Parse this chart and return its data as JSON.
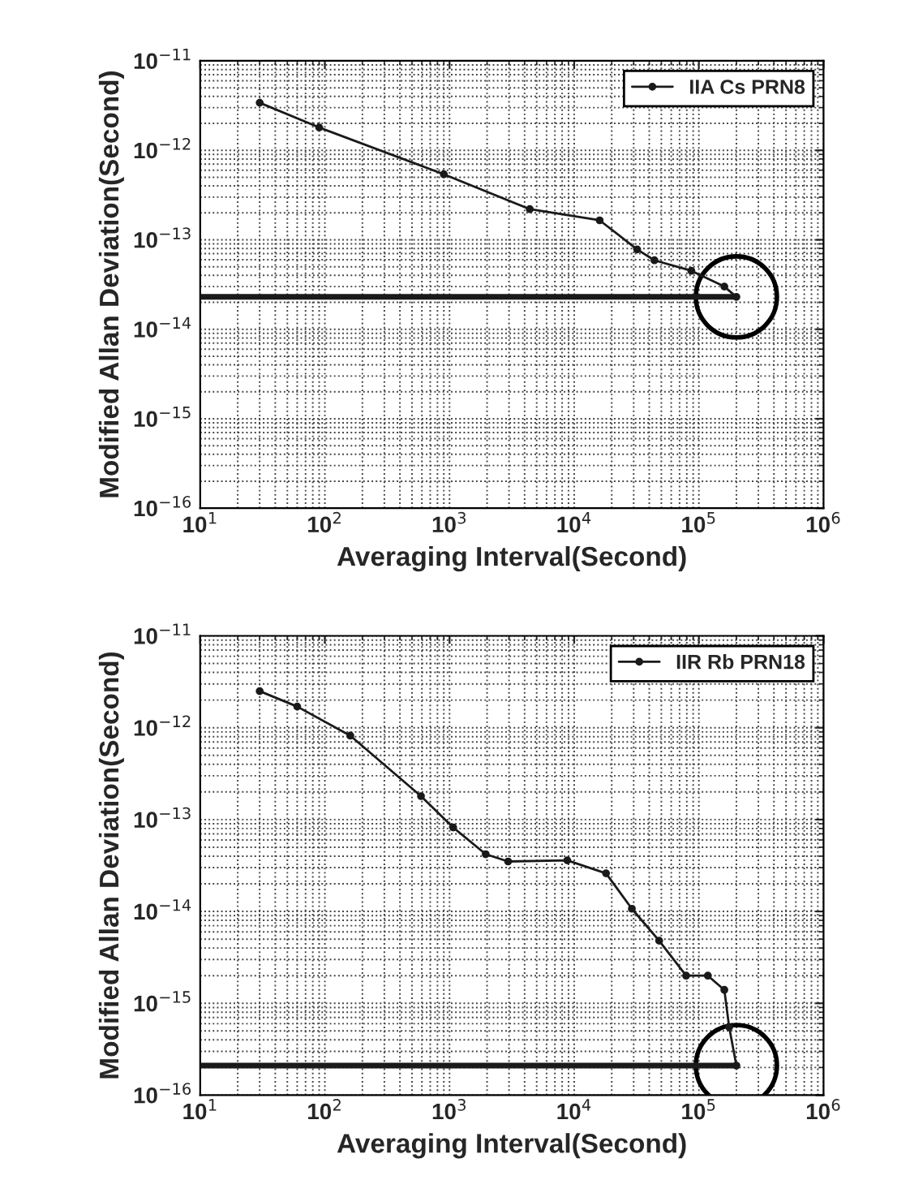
{
  "chart_data": [
    {
      "type": "line",
      "xlabel": "Averaging Interval(Second)",
      "ylabel": "Modified Allan Deviation(Second)",
      "log": "xy",
      "grid": true,
      "legend": "top right",
      "xlim": [
        10,
        1000000
      ],
      "ylim": [
        1e-16,
        1e-11
      ],
      "xticks": [
        {
          "value": 10,
          "label": "10$^{1}$"
        },
        {
          "value": 100,
          "label": "10$^{2}$"
        },
        {
          "value": 1000,
          "label": "10$^{3}$"
        },
        {
          "value": 10000,
          "label": "10$^{4}$"
        },
        {
          "value": 100000,
          "label": "10$^{5}$"
        },
        {
          "value": 1000000,
          "label": "10$^{6}$"
        }
      ],
      "yticks": [
        {
          "value": 1e-16,
          "label": "10$^{−16}$"
        },
        {
          "value": 1e-15,
          "label": "10$^{−15}$"
        },
        {
          "value": 1e-14,
          "label": "10$^{−14}$"
        },
        {
          "value": 1e-13,
          "label": "10$^{−13}$"
        },
        {
          "value": 1e-12,
          "label": "10$^{−12}$"
        },
        {
          "value": 1e-11,
          "label": "10$^{−11}$"
        }
      ],
      "series": [
        {
          "name": "IIA Cs PRN8",
          "color": "#1a1a1a",
          "marker": "circle",
          "x": [
            30,
            90,
            900,
            4400,
            16000,
            32000,
            44000,
            87000,
            160000,
            200000
          ],
          "values": [
            3.4e-12,
            1.8e-12,
            5.4e-13,
            2.2e-13,
            1.65e-13,
            7.8e-14,
            5.9e-14,
            4.5e-14,
            3e-14,
            2.3e-14
          ]
        },
        {
          "color": "#1a1a1a",
          "marker": "none",
          "x": [
            10,
            200000
          ],
          "values": [
            2.3e-14,
            2.3e-14
          ]
        }
      ]
    },
    {
      "type": "line",
      "xlabel": "Averaging Interval(Second)",
      "ylabel": "Modified Allan Deviation(Second)",
      "log": "xy",
      "grid": true,
      "legend": "top right",
      "xlim": [
        10,
        1000000
      ],
      "ylim": [
        1e-16,
        1e-11
      ],
      "xticks": [
        {
          "value": 10,
          "label": "10$^{1}$"
        },
        {
          "value": 100,
          "label": "10$^{2}$"
        },
        {
          "value": 1000,
          "label": "10$^{3}$"
        },
        {
          "value": 10000,
          "label": "10$^{4}$"
        },
        {
          "value": 100000,
          "label": "10$^{5}$"
        },
        {
          "value": 1000000,
          "label": "10$^{6}$"
        }
      ],
      "yticks": [
        {
          "value": 1e-16,
          "label": "10$^{−16}$"
        },
        {
          "value": 1e-15,
          "label": "10$^{−15}$"
        },
        {
          "value": 1e-14,
          "label": "10$^{−14}$"
        },
        {
          "value": 1e-13,
          "label": "10$^{−13}$"
        },
        {
          "value": 1e-12,
          "label": "10$^{−12}$"
        },
        {
          "value": 1e-11,
          "label": "10$^{−11}$"
        }
      ],
      "series": [
        {
          "name": "IIR Rb PRN18",
          "color": "#1a1a1a",
          "marker": "circle",
          "x": [
            30,
            60,
            160,
            590,
            1070,
            1950,
            2950,
            8800,
            18000,
            29000,
            48000,
            79000,
            118000,
            160000,
            175000,
            200000
          ],
          "values": [
            2.5e-12,
            1.7e-12,
            8.2e-13,
            1.8e-13,
            8.2e-14,
            4.2e-14,
            3.5e-14,
            3.6e-14,
            2.6e-14,
            1.07e-14,
            4.8e-15,
            2e-15,
            2e-15,
            1.4e-15,
            5.5e-16,
            2.1e-16
          ]
        },
        {
          "color": "#1a1a1a",
          "marker": "none",
          "x": [
            10,
            200000
          ],
          "values": [
            2.1e-16,
            2.1e-16
          ]
        }
      ]
    }
  ]
}
